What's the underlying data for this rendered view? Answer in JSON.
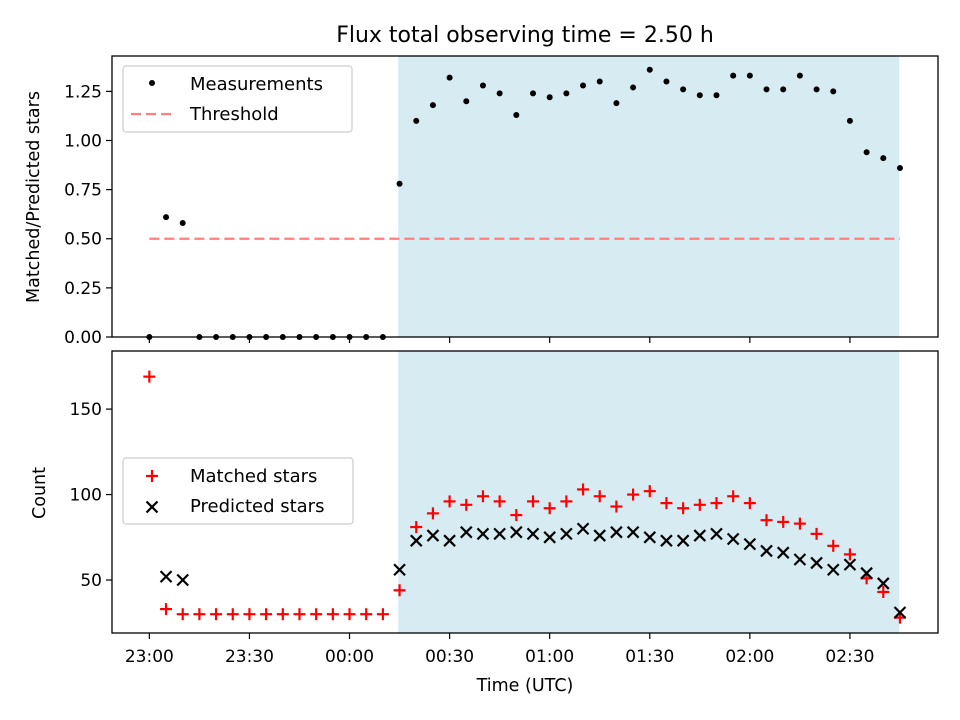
{
  "title": "Flux total observing time = 2.50 h",
  "colors": {
    "shade": "#add8e6",
    "threshold": "#ff7f7f",
    "matched": "#ff0000",
    "predicted": "#000000",
    "measurements": "#000000"
  },
  "chart_data": [
    {
      "type": "scatter",
      "title": "Flux total observing time = 2.50 h",
      "xlabel": "",
      "ylabel": "Matched/Predicted stars",
      "xlim_minutes_from_23_00": [
        -11.2,
        236.4
      ],
      "ylim": [
        0,
        1.43
      ],
      "yticks": [
        0.0,
        0.25,
        0.5,
        0.75,
        1.0,
        1.25
      ],
      "ytick_labels": [
        "0.00",
        "0.25",
        "0.50",
        "0.75",
        "1.00",
        "1.25"
      ],
      "shaded_region": {
        "from": "23:00 + 74.6 min",
        "to": "23:00 + 224.8 min"
      },
      "legend": {
        "position": "upper-left",
        "entries": [
          "Measurements",
          "Threshold"
        ]
      },
      "threshold": {
        "name": "Threshold",
        "value": 0.5,
        "x_from": 0,
        "x_to": 225
      },
      "series": [
        {
          "name": "Measurements",
          "x": [
            0,
            5,
            10,
            15,
            20,
            25,
            30,
            35,
            40,
            45,
            50,
            55,
            60,
            65,
            70,
            75,
            80,
            85,
            90,
            95,
            100,
            105,
            110,
            115,
            120,
            125,
            130,
            135,
            140,
            145,
            150,
            155,
            160,
            165,
            170,
            175,
            180,
            185,
            190,
            195,
            200,
            205,
            210,
            215,
            220,
            225
          ],
          "y": [
            0,
            0.61,
            0.58,
            0,
            0,
            0,
            0,
            0,
            0,
            0,
            0,
            0,
            0,
            0,
            0,
            0.78,
            1.1,
            1.18,
            1.32,
            1.2,
            1.28,
            1.24,
            1.13,
            1.24,
            1.22,
            1.24,
            1.28,
            1.3,
            1.19,
            1.27,
            1.36,
            1.3,
            1.26,
            1.23,
            1.23,
            1.33,
            1.33,
            1.26,
            1.26,
            1.33,
            1.26,
            1.25,
            1.1,
            0.94,
            0.91,
            0.86
          ]
        }
      ]
    },
    {
      "type": "scatter",
      "title": "",
      "xlabel": "Time (UTC)",
      "ylabel": "Count",
      "xlim_minutes_from_23_00": [
        -11.2,
        236.4
      ],
      "ylim": [
        19,
        184
      ],
      "yticks": [
        50,
        100,
        150
      ],
      "ytick_labels": [
        "50",
        "100",
        "150"
      ],
      "xticks_minutes_from_23_00": [
        0,
        30,
        60,
        90,
        120,
        150,
        180,
        210
      ],
      "xtick_labels": [
        "23:00",
        "23:30",
        "00:00",
        "00:30",
        "01:00",
        "01:30",
        "02:00",
        "02:30"
      ],
      "shaded_region": {
        "from": "23:00 + 74.6 min",
        "to": "23:00 + 224.8 min"
      },
      "legend": {
        "position": "center-left",
        "entries": [
          "Matched stars",
          "Predicted stars"
        ]
      },
      "series": [
        {
          "name": "Matched stars",
          "x": [
            0,
            5,
            10,
            15,
            20,
            25,
            30,
            35,
            40,
            45,
            50,
            55,
            60,
            65,
            70,
            75,
            80,
            85,
            90,
            95,
            100,
            105,
            110,
            115,
            120,
            125,
            130,
            135,
            140,
            145,
            150,
            155,
            160,
            165,
            170,
            175,
            180,
            185,
            190,
            195,
            200,
            205,
            210,
            215,
            220,
            225
          ],
          "y": [
            169,
            33,
            30,
            30,
            30,
            30,
            30,
            30,
            30,
            30,
            30,
            30,
            30,
            30,
            30,
            44,
            81,
            89,
            96,
            94,
            99,
            96,
            88,
            96,
            92,
            96,
            103,
            99,
            93,
            100,
            102,
            95,
            92,
            94,
            95,
            99,
            95,
            85,
            84,
            83,
            77,
            70,
            65,
            51,
            43,
            28
          ]
        },
        {
          "name": "Predicted stars",
          "x": [
            5,
            10,
            75,
            80,
            85,
            90,
            95,
            100,
            105,
            110,
            115,
            120,
            125,
            130,
            135,
            140,
            145,
            150,
            155,
            160,
            165,
            170,
            175,
            180,
            185,
            190,
            195,
            200,
            205,
            210,
            215,
            220,
            225
          ],
          "y": [
            52,
            50,
            56,
            73,
            76,
            73,
            78,
            77,
            77,
            78,
            77,
            75,
            77,
            80,
            76,
            78,
            78,
            75,
            73,
            73,
            76,
            77,
            74,
            71,
            67,
            66,
            62,
            60,
            56,
            59,
            54,
            48,
            31
          ]
        }
      ]
    }
  ]
}
